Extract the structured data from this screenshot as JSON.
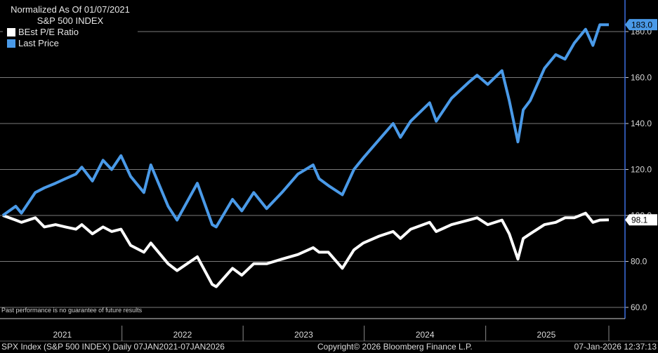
{
  "legend": {
    "line1": "Normalized As Of 01/07/2021",
    "line2": "S&P 500 INDEX",
    "items": [
      {
        "label": "BEst P/E Ratio",
        "color": "#ffffff"
      },
      {
        "label": "Last Price",
        "color": "#4a9ae8"
      }
    ]
  },
  "disclaimer": "Past performance is no guarantee of future results",
  "footer": {
    "left": "SPX Index (S&P 500 INDEX) Daily 07JAN2021-07JAN2026",
    "center": "Copyright© 2026 Bloomberg Finance L.P.",
    "right": "07-Jan-2026 12:37:13"
  },
  "colors": {
    "background": "#000000",
    "price": "#4a9ae8",
    "pe": "#ffffff",
    "grid": "#7a7a7a",
    "axis": "#3c6ee0"
  },
  "chart_data": {
    "type": "line",
    "title": "Normalized As Of 01/07/2021",
    "subtitle": "S&P 500 INDEX",
    "x_range": [
      "2021-01-07",
      "2026-01-07"
    ],
    "x_tick_labels": [
      "2021",
      "2022",
      "2023",
      "2024",
      "2025"
    ],
    "ylim": [
      60,
      195
    ],
    "y_ticks": [
      "60.0",
      "80.0",
      "100.0",
      "120.0",
      "140.0",
      "160.0",
      "180.0"
    ],
    "y_axis_side": "right",
    "grid": true,
    "legend_position": "top-left",
    "series": [
      {
        "name": "Last Price",
        "color": "#4a9ae8",
        "last_value_label": "183.0",
        "x": [
          "2021-01-07",
          "2021-02-15",
          "2021-03-04",
          "2021-04-15",
          "2021-05-12",
          "2021-06-15",
          "2021-07-15",
          "2021-08-15",
          "2021-09-02",
          "2021-10-04",
          "2021-11-05",
          "2021-12-01",
          "2021-12-29",
          "2022-01-27",
          "2022-03-08",
          "2022-03-29",
          "2022-05-20",
          "2022-06-16",
          "2022-08-16",
          "2022-09-30",
          "2022-10-12",
          "2022-11-30",
          "2022-12-28",
          "2023-02-02",
          "2023-03-13",
          "2023-04-28",
          "2023-06-15",
          "2023-07-31",
          "2023-08-18",
          "2023-09-15",
          "2023-10-27",
          "2023-12-01",
          "2023-12-29",
          "2024-02-15",
          "2024-03-28",
          "2024-04-19",
          "2024-05-20",
          "2024-07-16",
          "2024-08-05",
          "2024-09-20",
          "2024-11-11",
          "2024-12-06",
          "2025-01-07",
          "2025-02-19",
          "2025-03-13",
          "2025-04-08",
          "2025-04-24",
          "2025-05-15",
          "2025-06-27",
          "2025-07-31",
          "2025-08-28",
          "2025-09-25",
          "2025-10-29",
          "2025-11-20",
          "2025-12-11",
          "2026-01-07"
        ],
        "y": [
          100,
          104,
          101,
          110,
          112,
          114,
          116,
          118,
          121,
          115,
          124,
          120,
          126,
          117,
          110,
          122,
          104,
          98,
          114,
          96,
          95,
          107,
          102,
          110,
          103,
          110,
          118,
          122,
          116,
          113,
          109,
          120,
          125,
          133,
          140,
          134,
          141,
          149,
          141,
          151,
          158,
          161,
          157,
          163,
          150,
          132,
          146,
          150,
          164,
          170,
          168,
          175,
          181,
          174,
          183,
          183
        ]
      },
      {
        "name": "BEst P/E Ratio",
        "color": "#ffffff",
        "last_value_label": "98.1",
        "x": [
          "2021-01-07",
          "2021-02-15",
          "2021-03-04",
          "2021-04-15",
          "2021-05-12",
          "2021-06-15",
          "2021-07-15",
          "2021-08-15",
          "2021-09-02",
          "2021-10-04",
          "2021-11-05",
          "2021-12-01",
          "2021-12-29",
          "2022-01-27",
          "2022-03-08",
          "2022-03-29",
          "2022-05-20",
          "2022-06-16",
          "2022-08-16",
          "2022-09-30",
          "2022-10-12",
          "2022-11-30",
          "2022-12-28",
          "2023-02-02",
          "2023-03-13",
          "2023-04-28",
          "2023-06-15",
          "2023-07-31",
          "2023-08-18",
          "2023-09-15",
          "2023-10-27",
          "2023-12-01",
          "2023-12-29",
          "2024-02-15",
          "2024-03-28",
          "2024-04-19",
          "2024-05-20",
          "2024-07-16",
          "2024-08-05",
          "2024-09-20",
          "2024-11-11",
          "2024-12-06",
          "2025-01-07",
          "2025-02-19",
          "2025-03-13",
          "2025-04-08",
          "2025-04-24",
          "2025-05-15",
          "2025-06-27",
          "2025-07-31",
          "2025-08-28",
          "2025-09-25",
          "2025-10-29",
          "2025-11-20",
          "2025-12-11",
          "2026-01-07"
        ],
        "y": [
          100,
          98,
          97,
          99,
          95,
          96,
          95,
          94,
          96,
          92,
          95,
          93,
          94,
          87,
          84,
          88,
          79,
          76,
          82,
          70,
          69,
          77,
          74,
          79,
          79,
          81,
          83,
          86,
          84,
          84,
          77,
          85,
          88,
          91,
          93,
          90,
          94,
          97,
          93,
          96,
          98,
          99,
          96,
          98,
          92,
          81,
          90,
          92,
          96,
          97,
          99,
          99,
          101,
          97,
          98,
          98.1
        ]
      }
    ]
  }
}
